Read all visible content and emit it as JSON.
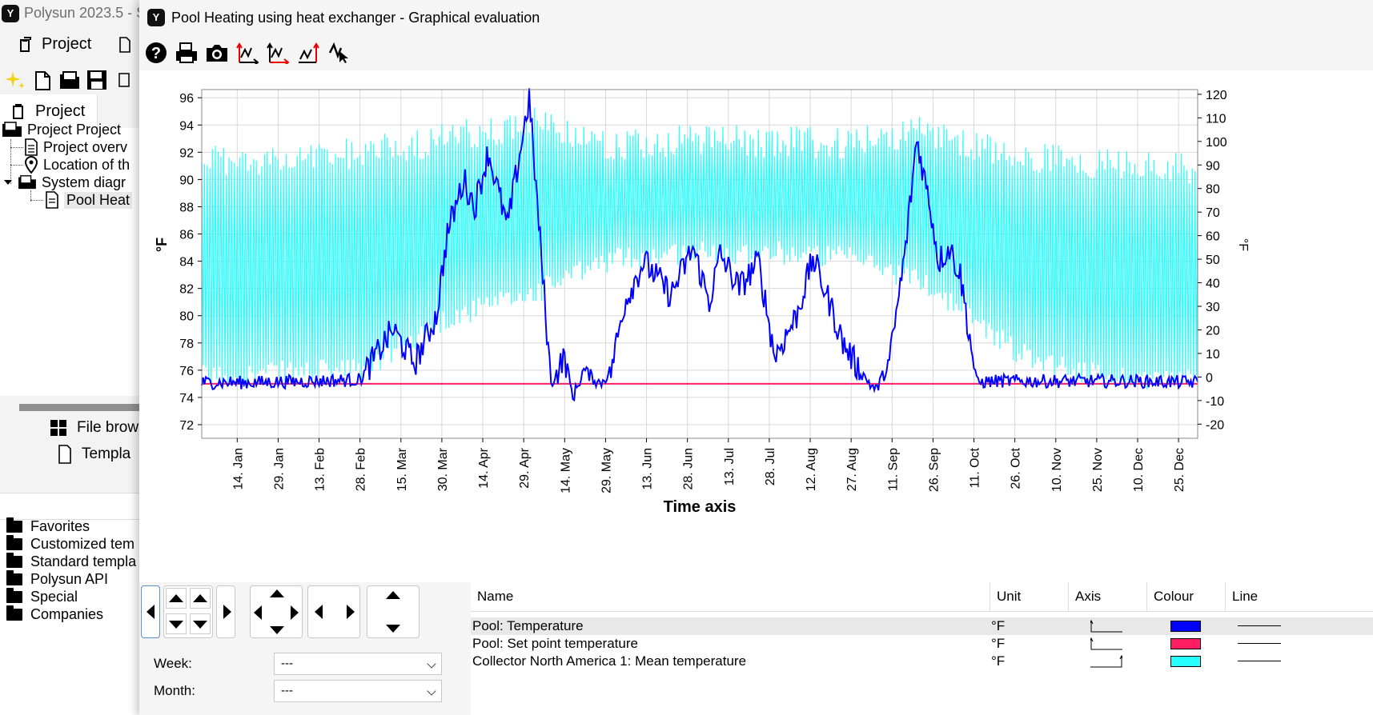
{
  "main_window": {
    "title": "Polysun 2023.5 - S",
    "menu_project": "Project",
    "project_tab": "Project",
    "tree": [
      "Project Project",
      "Project overv",
      "Location of th",
      "System diagr",
      "Pool Heat"
    ],
    "file_browser": "File brow",
    "templates": "Templa",
    "folders": [
      "Favorites",
      "Customized tem",
      "Standard templa",
      "Polysun API",
      "Special",
      "Companies"
    ]
  },
  "dialog": {
    "title": "Pool Heating using heat exchanger - Graphical evaluation",
    "toolbar_icons": [
      "help-icon",
      "print-icon",
      "camera-icon",
      "left-axis-scale-icon",
      "bottom-axis-scale-icon",
      "right-axis-scale-icon",
      "cursor-tool-icon"
    ]
  },
  "controls": {
    "week_label": "Week:",
    "week_value": "---",
    "month_label": "Month:",
    "month_value": "---"
  },
  "series_table": {
    "headers": {
      "name": "Name",
      "unit": "Unit",
      "axis": "Axis",
      "colour": "Colour",
      "line": "Line"
    },
    "rows": [
      {
        "name": "Pool: Temperature",
        "unit": "°F",
        "axis": "left",
        "colour": "#0000ff"
      },
      {
        "name": "Pool: Set point temperature",
        "unit": "°F",
        "axis": "left",
        "colour": "#ff1e64"
      },
      {
        "name": "Collector North America 1: Mean temperature",
        "unit": "°F",
        "axis": "right",
        "colour": "#28ffff"
      }
    ]
  },
  "chart_data": {
    "type": "line",
    "xlabel": "Time axis",
    "ylabel_left": "°F",
    "ylabel_right": "°F",
    "x_ticks": [
      "14. Jan",
      "29. Jan",
      "13. Feb",
      "28. Feb",
      "15. Mar",
      "30. Mar",
      "14. Apr",
      "29. Apr",
      "14. May",
      "29. May",
      "13. Jun",
      "28. Jun",
      "13. Jul",
      "28. Jul",
      "12. Aug",
      "27. Aug",
      "11. Sep",
      "26. Sep",
      "11. Oct",
      "26. Oct",
      "10. Nov",
      "25. Nov",
      "10. Dec",
      "25. Dec"
    ],
    "xlim_days": [
      0,
      365
    ],
    "ylim_left": [
      71,
      96.6
    ],
    "yticks_left": [
      72,
      74,
      76,
      78,
      80,
      82,
      84,
      86,
      88,
      90,
      92,
      94,
      96
    ],
    "ylim_right": [
      -26,
      122
    ],
    "yticks_right": [
      -20,
      -10,
      0,
      10,
      20,
      30,
      40,
      50,
      60,
      70,
      80,
      90,
      100,
      110,
      120
    ],
    "grid": true,
    "series": [
      {
        "name": "Pool: Temperature",
        "axis": "left",
        "color": "#0000ff",
        "x": [
          0,
          20,
          40,
          58,
          62,
          70,
          78,
          86,
          90,
          96,
          100,
          105,
          112,
          120,
          128,
          133,
          136,
          140,
          146,
          150,
          155,
          162,
          172,
          180,
          186,
          190,
          197,
          204,
          210,
          218,
          224,
          230,
          235,
          241,
          247,
          252,
          258,
          262,
          267,
          270,
          274,
          278,
          284,
          291,
          298,
          305,
          320,
          340,
          365
        ],
        "y": [
          75.1,
          75.1,
          75.2,
          75.3,
          76.5,
          79,
          76.5,
          80,
          86,
          90,
          88,
          92,
          86.5,
          96,
          75,
          77,
          74,
          76,
          75,
          76,
          81,
          84,
          81.5,
          85,
          81,
          84.5,
          82,
          84,
          77,
          80,
          84.2,
          81,
          78,
          76,
          74.5,
          76.5,
          85,
          93,
          88,
          84,
          85,
          83,
          75.1,
          75.2,
          75.2,
          75.2,
          75.2,
          75.2,
          75.1
        ]
      },
      {
        "name": "Pool: Set point temperature",
        "axis": "left",
        "color": "#ff1e64",
        "x": [
          0,
          365
        ],
        "y": [
          75,
          75
        ]
      },
      {
        "name": "Collector North America 1: Mean temperature",
        "axis": "right",
        "color": "#28ffff",
        "daily_max_x": [
          0,
          30,
          60,
          90,
          120,
          150,
          180,
          210,
          240,
          265,
          300,
          330,
          365
        ],
        "daily_max_y": [
          100,
          98,
          103,
          108,
          115,
          106,
          107,
          107,
          106,
          112,
          100,
          98,
          96
        ],
        "daily_min_x": [
          0,
          30,
          60,
          90,
          120,
          150,
          180,
          210,
          240,
          265,
          300,
          330,
          365
        ],
        "daily_min_y": [
          -5,
          -3,
          -2,
          20,
          30,
          45,
          48,
          48,
          45,
          35,
          5,
          -5,
          -6
        ]
      }
    ]
  }
}
